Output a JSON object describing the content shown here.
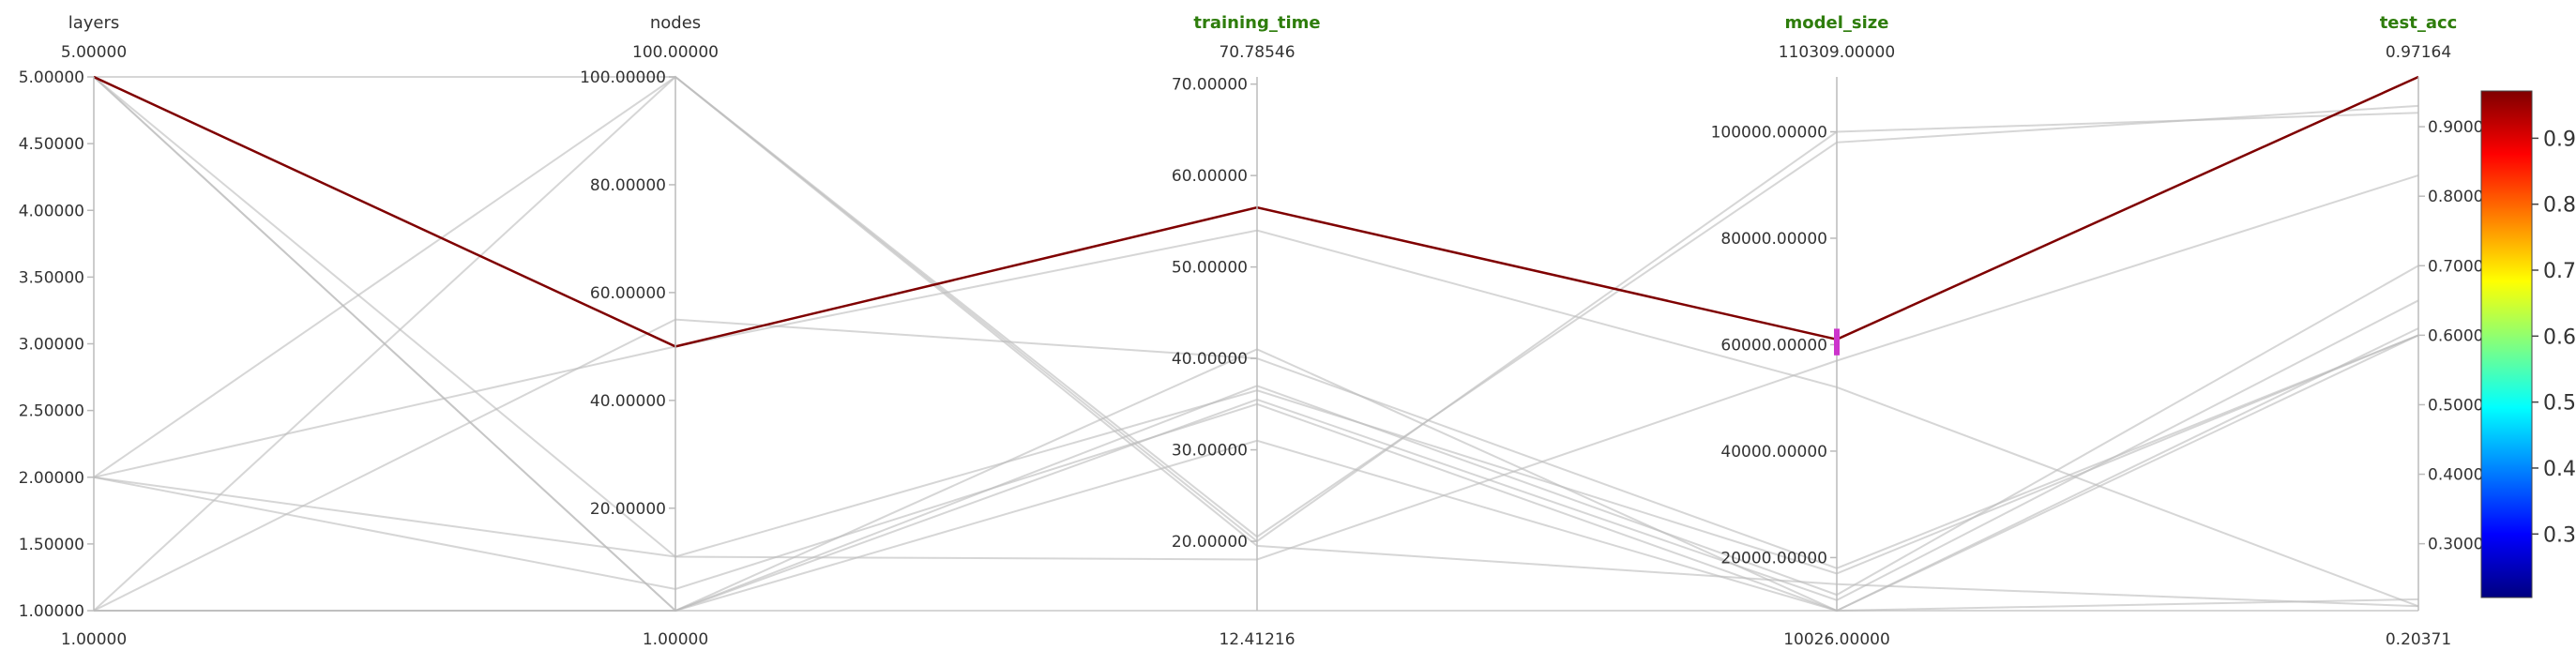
{
  "chart_data": {
    "type": "parallel_coordinates",
    "axes": [
      {
        "name": "layers",
        "highlighted": false,
        "max_label": "5.00000",
        "min_label": "1.00000",
        "range": [
          1.0,
          5.0
        ],
        "ticks": [
          {
            "value": 1.0,
            "label": "1.00000"
          },
          {
            "value": 1.5,
            "label": "1.50000"
          },
          {
            "value": 2.0,
            "label": "2.00000"
          },
          {
            "value": 2.5,
            "label": "2.50000"
          },
          {
            "value": 3.0,
            "label": "3.00000"
          },
          {
            "value": 3.5,
            "label": "3.50000"
          },
          {
            "value": 4.0,
            "label": "4.00000"
          },
          {
            "value": 4.5,
            "label": "4.50000"
          },
          {
            "value": 5.0,
            "label": "5.00000"
          }
        ]
      },
      {
        "name": "nodes",
        "highlighted": false,
        "max_label": "100.00000",
        "min_label": "1.00000",
        "range": [
          1.0,
          100.0
        ],
        "ticks": [
          {
            "value": 20,
            "label": "20.00000"
          },
          {
            "value": 40,
            "label": "40.00000"
          },
          {
            "value": 60,
            "label": "60.00000"
          },
          {
            "value": 80,
            "label": "80.00000"
          },
          {
            "value": 100,
            "label": "100.00000"
          }
        ]
      },
      {
        "name": "training_time",
        "highlighted": true,
        "max_label": "70.78546",
        "min_label": "12.41216",
        "range": [
          12.41216,
          70.78546
        ],
        "ticks": [
          {
            "value": 20,
            "label": "20.00000"
          },
          {
            "value": 30,
            "label": "30.00000"
          },
          {
            "value": 40,
            "label": "40.00000"
          },
          {
            "value": 50,
            "label": "50.00000"
          },
          {
            "value": 60,
            "label": "60.00000"
          },
          {
            "value": 70,
            "label": "70.00000"
          }
        ]
      },
      {
        "name": "model_size",
        "highlighted": true,
        "max_label": "110309.00000",
        "min_label": "10026.00000",
        "range": [
          10026.0,
          110309.0
        ],
        "ticks": [
          {
            "value": 20000,
            "label": "20000.00000"
          },
          {
            "value": 40000,
            "label": "40000.00000"
          },
          {
            "value": 60000,
            "label": "60000.00000"
          },
          {
            "value": 80000,
            "label": "80000.00000"
          },
          {
            "value": 100000,
            "label": "100000.00000"
          }
        ]
      },
      {
        "name": "test_acc",
        "highlighted": true,
        "max_label": "0.97164",
        "min_label": "0.20371",
        "range": [
          0.20371,
          0.97164
        ],
        "ticks": [
          {
            "value": 0.3,
            "label": "0.30000"
          },
          {
            "value": 0.4,
            "label": "0.40000"
          },
          {
            "value": 0.5,
            "label": "0.50000"
          },
          {
            "value": 0.6,
            "label": "0.60000"
          },
          {
            "value": 0.7,
            "label": "0.70000"
          },
          {
            "value": 0.8,
            "label": "0.80000"
          },
          {
            "value": 0.9,
            "label": "0.90000"
          }
        ]
      }
    ],
    "records": [
      {
        "values": [
          5,
          50,
          56.5,
          61000,
          0.97164
        ],
        "selected": true
      },
      {
        "values": [
          5,
          100,
          19.5,
          15000,
          0.21
        ],
        "selected": false
      },
      {
        "values": [
          5,
          1,
          37,
          13000,
          0.7
        ],
        "selected": false
      },
      {
        "values": [
          5,
          1,
          35.5,
          12000,
          0.65
        ],
        "selected": false
      },
      {
        "values": [
          5,
          11,
          18,
          57000,
          0.83
        ],
        "selected": false
      },
      {
        "values": [
          2,
          100,
          20.5,
          98000,
          0.93
        ],
        "selected": false
      },
      {
        "values": [
          2,
          11,
          36.5,
          17000,
          0.6
        ],
        "selected": false
      },
      {
        "values": [
          2,
          5,
          35,
          10026,
          0.61
        ],
        "selected": false
      },
      {
        "values": [
          2,
          50,
          54,
          52000,
          0.21
        ],
        "selected": false
      },
      {
        "values": [
          1,
          55,
          40,
          18000,
          0.6
        ],
        "selected": false
      },
      {
        "values": [
          1,
          100,
          20,
          100000,
          0.92
        ],
        "selected": false
      },
      {
        "values": [
          1,
          1,
          41,
          10026,
          0.6
        ],
        "selected": false
      },
      {
        "values": [
          1,
          1,
          31,
          10026,
          0.22
        ],
        "selected": false
      },
      {
        "values": [
          1,
          1,
          12.41216,
          10026,
          0.20371
        ],
        "selected": false
      }
    ],
    "selection_brush": {
      "axis": "model_size",
      "range": [
        58000,
        63000
      ]
    },
    "colorbar": {
      "range": [
        0.20371,
        0.97164
      ],
      "tick_labels": [
        "0.3",
        "0.4",
        "0.5",
        "0.6",
        "0.7",
        "0.8",
        "0.9"
      ],
      "ticks": [
        0.3,
        0.4,
        0.5,
        0.6,
        0.7,
        0.8,
        0.9
      ],
      "colormap": [
        "#00007f",
        "#0000ff",
        "#0080ff",
        "#00ffff",
        "#80ff80",
        "#ffff00",
        "#ff8000",
        "#ff0000",
        "#7f0000"
      ]
    },
    "colors": {
      "highlight_label": "#2e7d0c",
      "label": "#333333",
      "context_line": "#bbbbbb",
      "axis": "#bbbbbb",
      "brush": "#cc33cc"
    }
  }
}
